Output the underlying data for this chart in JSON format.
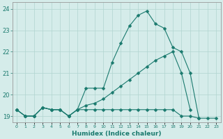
{
  "xlabel": "Humidex (Indice chaleur)",
  "x_values": [
    0,
    1,
    2,
    3,
    4,
    5,
    6,
    7,
    8,
    9,
    10,
    11,
    12,
    13,
    14,
    15,
    16,
    17,
    18,
    19,
    20,
    21,
    22,
    23
  ],
  "line1": [
    19.3,
    19.0,
    19.0,
    19.4,
    19.3,
    19.3,
    19.0,
    19.3,
    19.3,
    19.3,
    19.3,
    19.3,
    19.3,
    19.3,
    19.3,
    19.3,
    19.3,
    19.3,
    19.3,
    19.0,
    19.0,
    18.9,
    18.9,
    18.9
  ],
  "line2": [
    19.3,
    19.0,
    19.0,
    19.4,
    19.3,
    19.3,
    19.0,
    19.3,
    20.3,
    20.3,
    20.3,
    21.5,
    22.4,
    23.2,
    23.7,
    23.9,
    23.3,
    23.1,
    22.2,
    22.0,
    21.0,
    18.9,
    null,
    null
  ],
  "line3": [
    19.3,
    19.0,
    19.0,
    19.4,
    19.3,
    19.3,
    19.0,
    19.3,
    19.5,
    19.6,
    19.8,
    20.1,
    20.4,
    20.7,
    21.0,
    21.3,
    21.6,
    21.8,
    22.0,
    21.0,
    19.3,
    null,
    null,
    null
  ],
  "bg_color": "#d5ecea",
  "line_color": "#1a7a6e",
  "ylim": [
    18.7,
    24.3
  ],
  "yticks": [
    19,
    20,
    21,
    22,
    23,
    24
  ],
  "markersize": 2.5,
  "linewidth": 0.8
}
